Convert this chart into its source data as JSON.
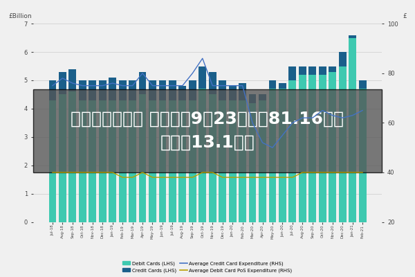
{
  "ylabel_left": "£Billion",
  "ylabel_right": "£",
  "ylim_left": [
    0,
    7
  ],
  "ylim_right": [
    20,
    100
  ],
  "yticks_left": [
    0,
    1,
    2,
    3,
    4,
    5,
    6,
    7
  ],
  "yticks_right": [
    20,
    40,
    60,
    80,
    100
  ],
  "title_overlay": "股票杠杆保证金 先声药业9月23日斥资81.16万港\n元回购13.1万股",
  "title_overlay_fontsize": 18,
  "background_color": "#f0f0f0",
  "plot_bg_color": "#f0f0f0",
  "overlay_color": "#555555",
  "overlay_alpha": 0.78,
  "x_labels": [
    "Jul-18",
    "Aug-18",
    "Sep-18",
    "Oct-18",
    "Nov-18",
    "Dec-18",
    "Jan-19",
    "Feb-19",
    "Mar-19",
    "Apr-19",
    "May-19",
    "Jun-19",
    "Jul-19",
    "Aug-19",
    "Sep-19",
    "Oct-19",
    "Nov-19",
    "Dec-19",
    "Jan-20",
    "Feb-20",
    "Mar-20",
    "Apr-20",
    "May-20",
    "Jun-20",
    "Jul-20",
    "Aug-20",
    "Sep-20",
    "Oct-20",
    "Nov-20",
    "Dec-20",
    "Jan-21",
    "Feb-21"
  ],
  "debit_bars": [
    4.3,
    4.5,
    4.6,
    4.3,
    4.3,
    4.3,
    4.3,
    4.3,
    4.3,
    4.5,
    4.3,
    4.3,
    4.3,
    4.3,
    4.3,
    4.7,
    4.5,
    4.3,
    4.3,
    4.3,
    4.2,
    4.3,
    4.7,
    4.7,
    5.0,
    5.2,
    5.2,
    5.2,
    5.3,
    5.5,
    6.5,
    4.7
  ],
  "credit_bars": [
    0.7,
    0.8,
    0.8,
    0.7,
    0.7,
    0.7,
    0.8,
    0.7,
    0.7,
    0.8,
    0.7,
    0.7,
    0.7,
    0.5,
    0.7,
    0.8,
    0.8,
    0.7,
    0.5,
    0.6,
    0.3,
    0.2,
    0.3,
    0.2,
    0.5,
    0.3,
    0.3,
    0.3,
    0.2,
    0.5,
    0.1,
    0.3
  ],
  "avg_credit_line": [
    75,
    78,
    76,
    75,
    75,
    75,
    76,
    75,
    75,
    80,
    75,
    75,
    75,
    75,
    80,
    86,
    75,
    75,
    75,
    75,
    60,
    52,
    50,
    55,
    60,
    62,
    62,
    65,
    63,
    62,
    63,
    65
  ],
  "avg_debit_line": [
    40,
    40,
    40,
    40,
    40,
    40,
    40,
    38,
    38,
    40,
    38,
    38,
    38,
    38,
    38,
    40,
    40,
    38,
    38,
    38,
    38,
    38,
    38,
    38,
    38,
    40,
    40,
    40,
    40,
    40,
    40,
    40
  ],
  "debit_color": "#3ec9b0",
  "credit_color": "#1a5f8a",
  "avg_credit_color": "#4472c4",
  "avg_debit_color": "#b8a000",
  "legend_labels": [
    "Debit Cards (LHS)",
    "Credit Cards (LHS)",
    "Average Credit Card Expenditure (RHS)",
    "Average Debit Card PoS Expenditure (RHS)"
  ]
}
